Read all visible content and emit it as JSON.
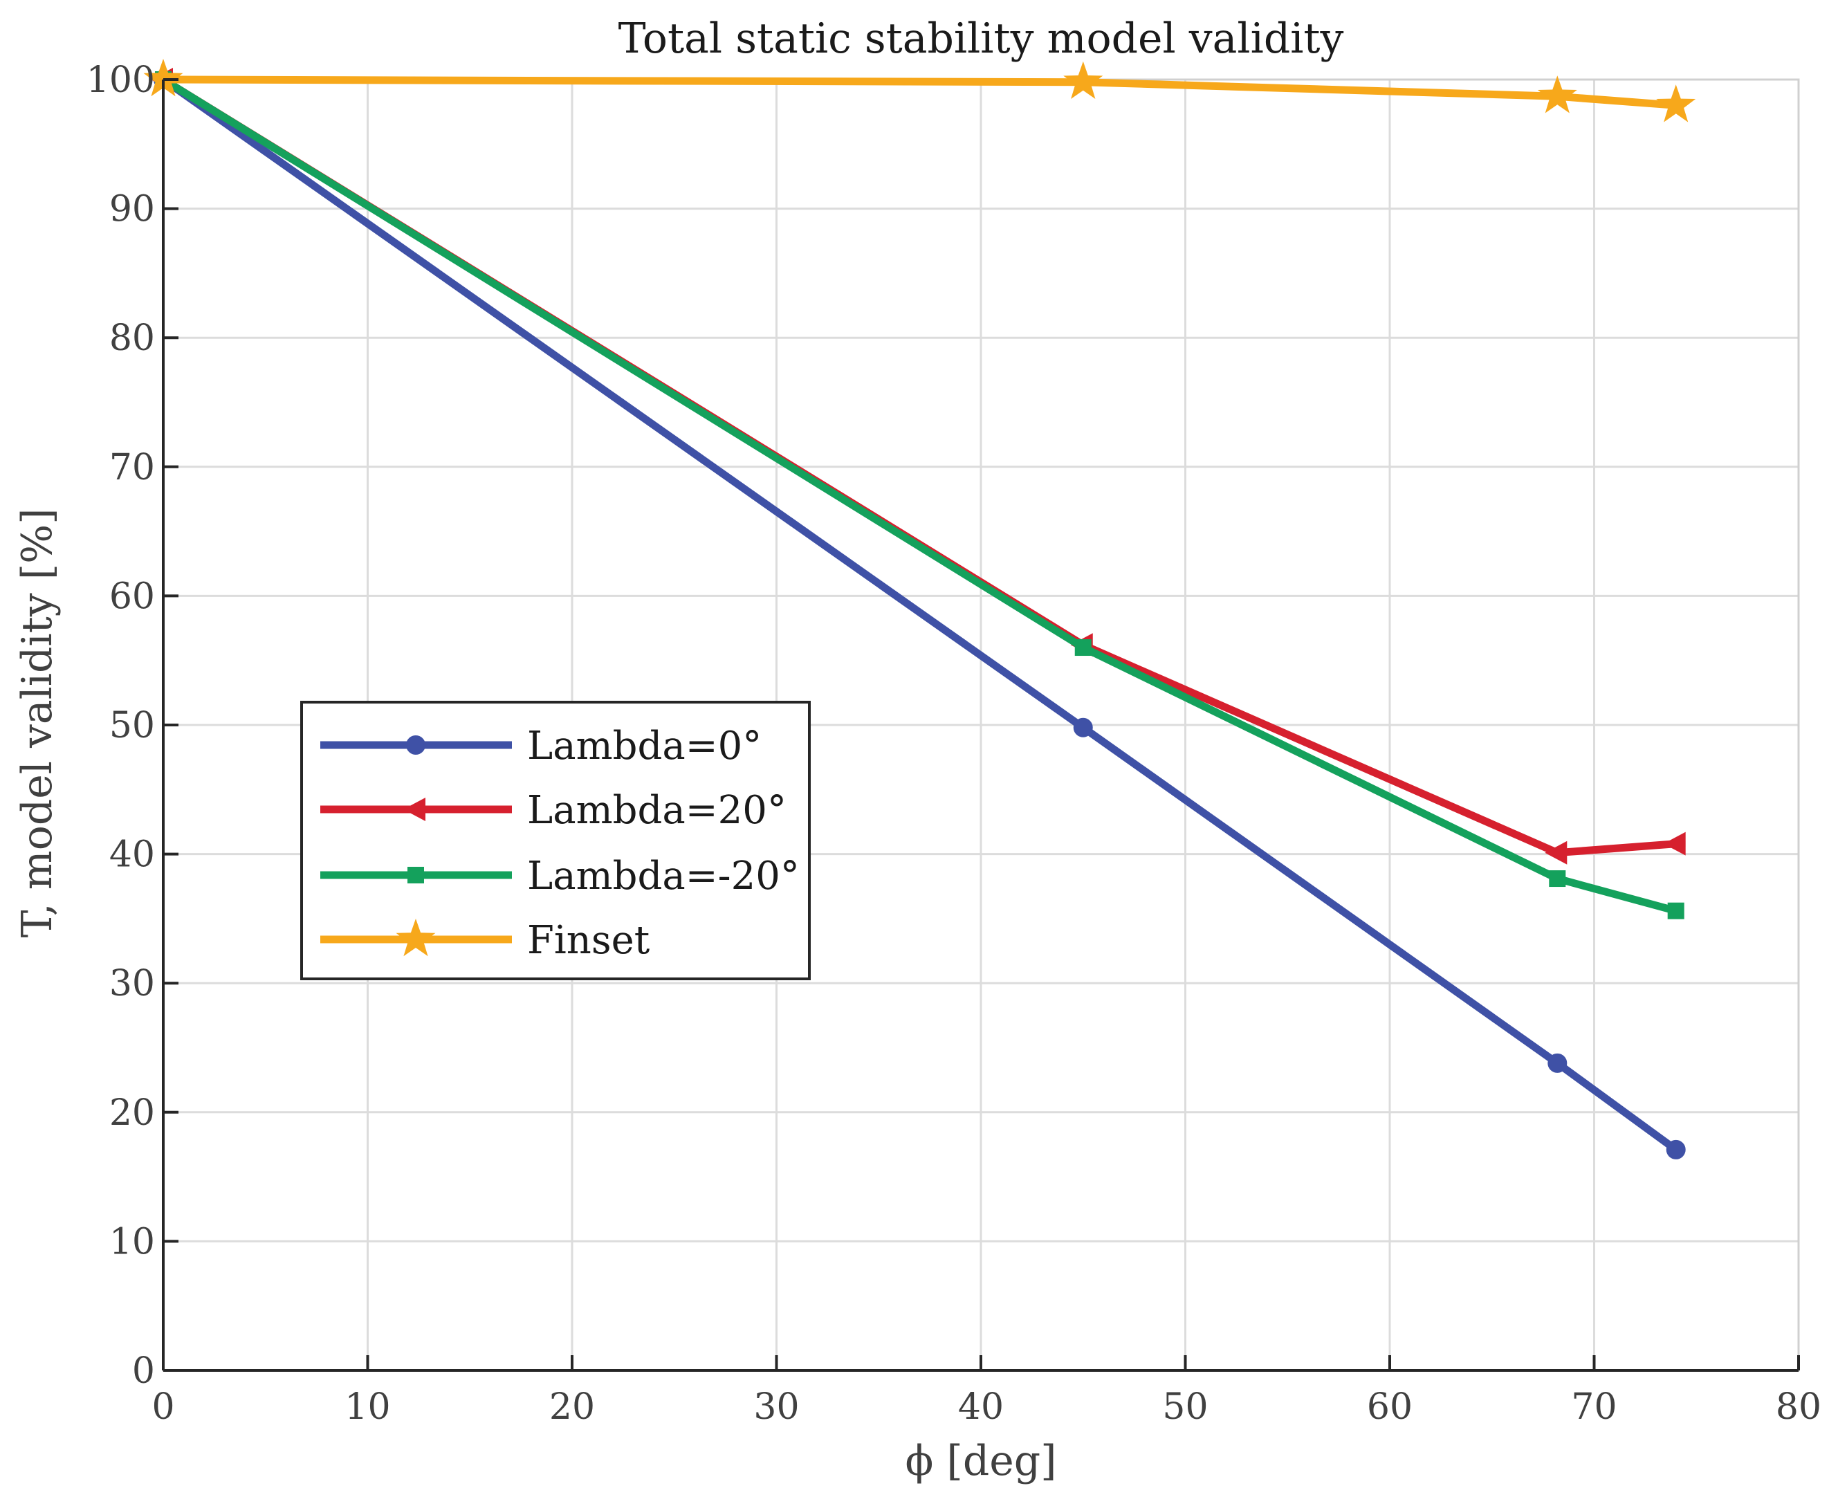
{
  "chart_data": {
    "type": "line",
    "title": "Total static stability model validity",
    "xlabel": "ϕ [deg]",
    "ylabel": "T, model validity [%]",
    "xlim": [
      0,
      80
    ],
    "ylim": [
      0,
      100
    ],
    "xticks": [
      0,
      10,
      20,
      30,
      40,
      50,
      60,
      70,
      80
    ],
    "yticks": [
      0,
      10,
      20,
      30,
      40,
      50,
      60,
      70,
      80,
      90,
      100
    ],
    "x_tick_labels": [
      "0",
      "10",
      "20",
      "30",
      "40",
      "50",
      "60",
      "70",
      "80"
    ],
    "y_tick_labels": [
      "0",
      "10",
      "20",
      "30",
      "40",
      "50",
      "60",
      "70",
      "80",
      "90",
      "100"
    ],
    "grid": true,
    "legend_position": "center-left",
    "series": [
      {
        "name": "Lambda=0°",
        "color": "#3F51A6",
        "marker": "circle",
        "x": [
          0,
          45,
          68.2,
          74
        ],
        "values": [
          100,
          49.8,
          23.8,
          17.1
        ]
      },
      {
        "name": "Lambda=20°",
        "color": "#D6202E",
        "marker": "triangle-left",
        "x": [
          0,
          45,
          68.2,
          74
        ],
        "values": [
          100,
          56.2,
          40.1,
          40.8
        ]
      },
      {
        "name": "Lambda=-20°",
        "color": "#14A15C",
        "marker": "square",
        "x": [
          0,
          45,
          68.2,
          74
        ],
        "values": [
          100,
          56.0,
          38.1,
          35.6
        ]
      },
      {
        "name": "Finset",
        "color": "#F7A81B",
        "marker": "star",
        "x": [
          0,
          45,
          68.2,
          74
        ],
        "values": [
          100,
          99.8,
          98.7,
          98.0
        ]
      }
    ]
  }
}
